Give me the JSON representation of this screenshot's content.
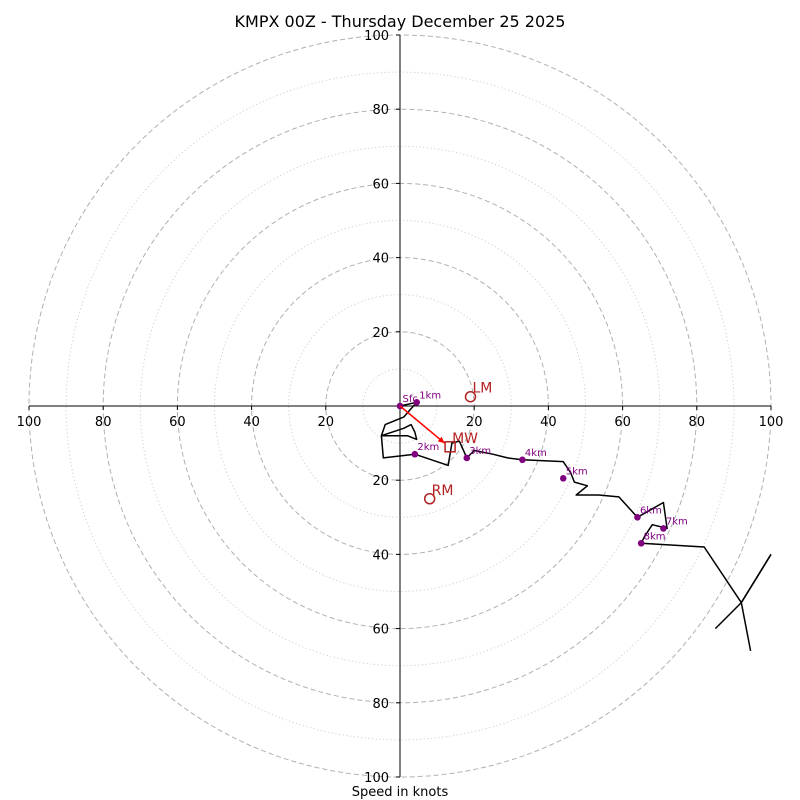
{
  "chart_data": {
    "type": "hodograph",
    "title": "KMPX 00Z - Thursday December 25 2025",
    "xlabel": "Speed in knots",
    "range": [
      -100,
      100
    ],
    "major_rings": [
      20,
      40,
      60,
      80,
      100
    ],
    "minor_rings": [
      10,
      30,
      50,
      70,
      90
    ],
    "x_tick_labels": [
      "100",
      "80",
      "60",
      "40",
      "20",
      "20",
      "40",
      "60",
      "80",
      "100"
    ],
    "x_tick_values": [
      -100,
      -80,
      -60,
      -40,
      -20,
      20,
      40,
      60,
      80,
      100
    ],
    "y_tick_labels_top": [
      "100",
      "80",
      "60",
      "40",
      "20"
    ],
    "y_tick_values_top": [
      100,
      80,
      60,
      40,
      20
    ],
    "y_tick_labels_bottom": [
      "20",
      "40",
      "60",
      "80",
      "100"
    ],
    "y_tick_values_bottom": [
      -20,
      -40,
      -60,
      -80,
      -100
    ],
    "hodograph_trace": [
      [
        0,
        0
      ],
      [
        4.5,
        1
      ],
      [
        1,
        -3
      ],
      [
        -4,
        -5
      ],
      [
        -5,
        -8
      ],
      [
        1,
        -6
      ],
      [
        3,
        -5
      ],
      [
        4,
        -7
      ],
      [
        4.5,
        -9
      ],
      [
        2,
        -8
      ],
      [
        -5,
        -8
      ],
      [
        -4.5,
        -14
      ],
      [
        4,
        -13
      ],
      [
        13,
        -16
      ],
      [
        14,
        -10
      ],
      [
        16,
        -9.5
      ],
      [
        18,
        -14
      ],
      [
        20,
        -12
      ],
      [
        25,
        -13
      ],
      [
        29,
        -14
      ],
      [
        33,
        -14.5
      ],
      [
        44,
        -15
      ],
      [
        46,
        -18
      ],
      [
        47,
        -20.5
      ],
      [
        50.5,
        -21.5
      ],
      [
        47.5,
        -24
      ],
      [
        53.5,
        -24
      ],
      [
        59,
        -24.5
      ],
      [
        64,
        -30
      ],
      [
        71,
        -26
      ],
      [
        72,
        -33
      ],
      [
        68,
        -32
      ],
      [
        66,
        -35
      ],
      [
        65,
        -37
      ],
      [
        82,
        -38
      ],
      [
        92,
        -53
      ],
      [
        100,
        -40
      ]
    ],
    "height_markers": [
      {
        "label": "Sfc",
        "u": 0,
        "v": 0
      },
      {
        "label": "1km",
        "u": 4.5,
        "v": 1
      },
      {
        "label": "2km",
        "u": 4,
        "v": -13
      },
      {
        "label": "3km",
        "u": 18,
        "v": -14
      },
      {
        "label": "4km",
        "u": 33,
        "v": -14.5
      },
      {
        "label": "5km",
        "u": 44,
        "v": -19.5
      },
      {
        "label": "6km",
        "u": 64,
        "v": -30
      },
      {
        "label": "7km",
        "u": 71,
        "v": -33
      },
      {
        "label": "8km",
        "u": 65,
        "v": -37
      }
    ],
    "storm_motion_vectors": [
      {
        "label": "LM",
        "u": 19,
        "v": 2.5
      },
      {
        "label": "RM",
        "u": 8,
        "v": -25
      },
      {
        "label": "MW",
        "u": 13.5,
        "v": -11
      }
    ],
    "mean_vector": {
      "from": [
        0,
        0
      ],
      "to": [
        12,
        -10
      ]
    },
    "wind_barb": {
      "u": 92,
      "v": -53,
      "staff_to": [
        100,
        -40
      ],
      "barbs": [
        [
          85,
          -60
        ],
        [
          94.5,
          -66
        ]
      ]
    },
    "colors": {
      "trace": "#000000",
      "height_marker": "#800080",
      "storm_motion": "#b22222",
      "mean_vector": "#ff0000",
      "major_ring": "#b0b0b0",
      "minor_ring": "#d0d0d0"
    }
  }
}
